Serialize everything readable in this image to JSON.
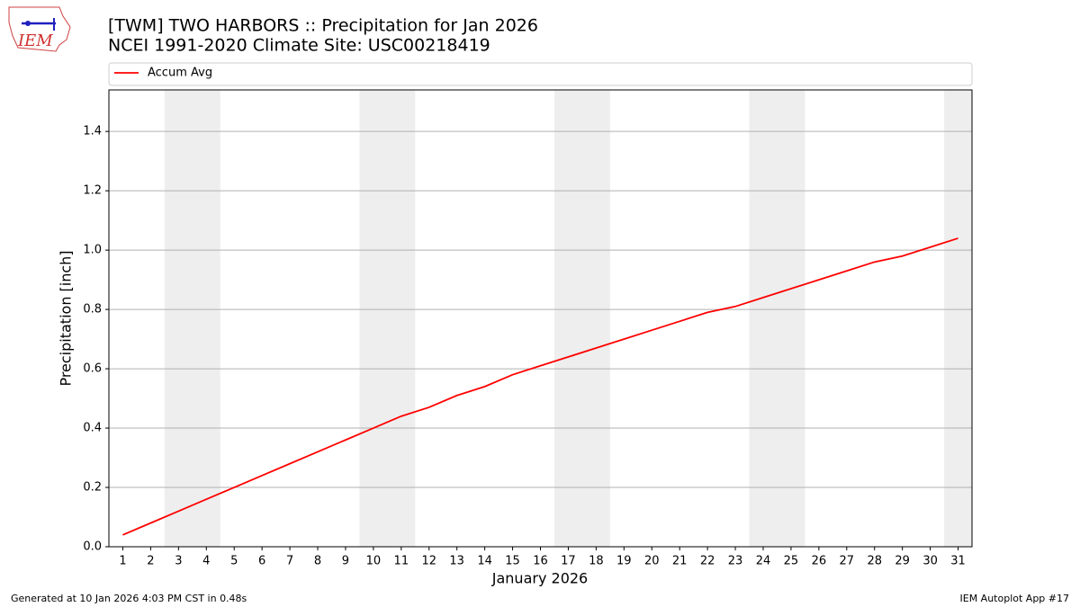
{
  "logo": {
    "text": "IEM"
  },
  "chart_data": {
    "type": "line",
    "title": "[TWM] TWO HARBORS :: Precipitation for Jan 2026",
    "subtitle": "NCEI 1991-2020 Climate Site: USC00218419",
    "xlabel": "January 2026",
    "ylabel": "Precipitation [inch]",
    "x": [
      1,
      2,
      3,
      4,
      5,
      6,
      7,
      8,
      9,
      10,
      11,
      12,
      13,
      14,
      15,
      16,
      17,
      18,
      19,
      20,
      21,
      22,
      23,
      24,
      25,
      26,
      27,
      28,
      29,
      30,
      31
    ],
    "series": [
      {
        "name": "Accum Avg",
        "color": "#ff0000",
        "values": [
          0.04,
          0.08,
          0.12,
          0.16,
          0.2,
          0.24,
          0.28,
          0.32,
          0.36,
          0.4,
          0.44,
          0.47,
          0.51,
          0.54,
          0.58,
          0.61,
          0.64,
          0.67,
          0.7,
          0.73,
          0.76,
          0.79,
          0.81,
          0.84,
          0.87,
          0.9,
          0.93,
          0.96,
          0.98,
          1.01,
          1.04
        ]
      }
    ],
    "shaded_ranges": [
      [
        2.5,
        4.5
      ],
      [
        9.5,
        11.5
      ],
      [
        16.5,
        18.5
      ],
      [
        23.5,
        25.5
      ],
      [
        30.5,
        31.5
      ]
    ],
    "shade_color": "#eeeeee",
    "xlim": [
      0.5,
      31.5
    ],
    "xticks": [
      1,
      2,
      3,
      4,
      5,
      6,
      7,
      8,
      9,
      10,
      11,
      12,
      13,
      14,
      15,
      16,
      17,
      18,
      19,
      20,
      21,
      22,
      23,
      24,
      25,
      26,
      27,
      28,
      29,
      30,
      31
    ],
    "ylim": [
      0,
      1.54
    ],
    "yticks": [
      {
        "value": 0,
        "label": "0.0"
      },
      {
        "value": 0.2,
        "label": "0.2"
      },
      {
        "value": 0.4,
        "label": "0.4"
      },
      {
        "value": 0.6,
        "label": "0.6"
      },
      {
        "value": 0.8,
        "label": "0.8"
      },
      {
        "value": 1.0,
        "label": "1.0"
      },
      {
        "value": 1.2,
        "label": "1.2"
      },
      {
        "value": 1.4,
        "label": "1.4"
      }
    ],
    "grid": true,
    "legend": "top",
    "footer_left": "Generated at 10 Jan 2026 4:03 PM CST in 0.48s",
    "footer_right": "IEM Autoplot App #17"
  }
}
